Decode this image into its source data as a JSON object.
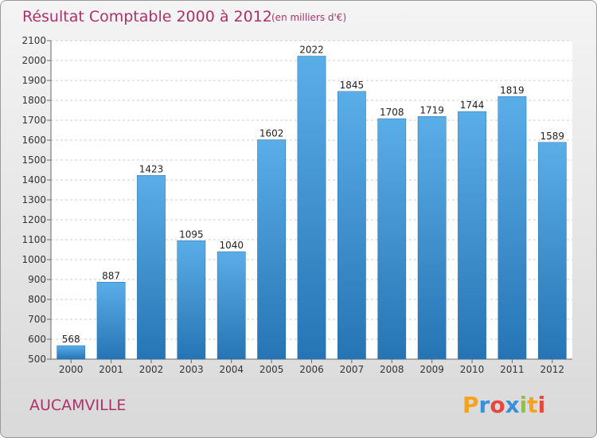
{
  "chart_data": {
    "type": "bar",
    "title": "Résultat Comptable 2000 à 2012",
    "subtitle": "(en milliers d'€)",
    "categories": [
      "2000",
      "2001",
      "2002",
      "2003",
      "2004",
      "2005",
      "2006",
      "2007",
      "2008",
      "2009",
      "2010",
      "2011",
      "2012"
    ],
    "values": [
      568,
      887,
      1423,
      1095,
      1040,
      1602,
      2022,
      1845,
      1708,
      1719,
      1744,
      1819,
      1589
    ],
    "ylim": [
      500,
      2100
    ],
    "yticks": [
      500,
      600,
      700,
      800,
      900,
      1000,
      1100,
      1200,
      1300,
      1400,
      1500,
      1600,
      1700,
      1800,
      1900,
      2000,
      2100
    ],
    "grid": true,
    "xlabel": "",
    "ylabel": ""
  },
  "location": "AUCAMVILLE",
  "brand": {
    "name": "Proxiti",
    "letters": [
      "P",
      "r",
      "o",
      "x",
      "i",
      "t",
      "i"
    ],
    "letter_colors": [
      "#f7a21b",
      "#3a8fd9",
      "#e8473c",
      "#3a8fd9",
      "#8cc63f",
      "#f7a21b",
      "#e8473c"
    ]
  },
  "colors": {
    "bar_top": "#5aaee8",
    "bar_bottom": "#2674b4",
    "title": "#b0306a"
  }
}
